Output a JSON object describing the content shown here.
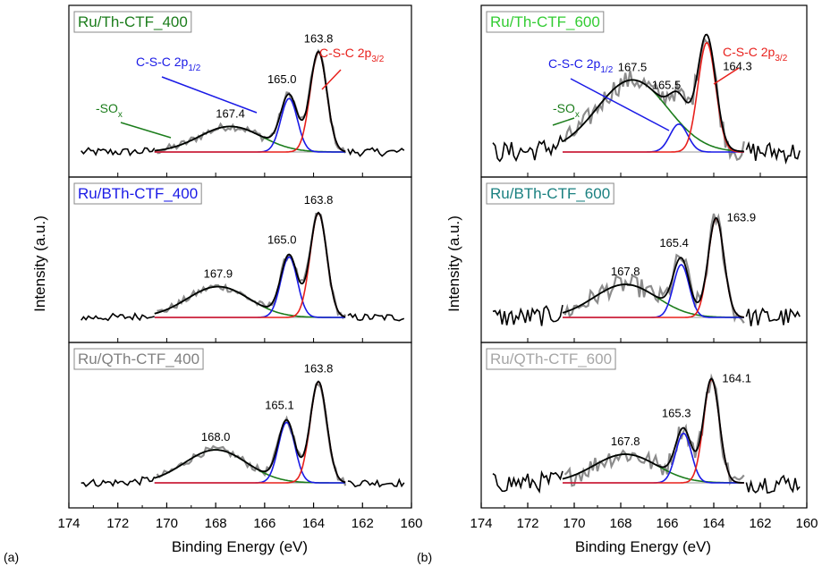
{
  "figure": {
    "panel_labels": [
      "(a)",
      "(b)"
    ],
    "xlabel": "Binding Energy (eV)",
    "ylabel": "Intensity (a.u.)",
    "xticks": [
      174,
      172,
      170,
      168,
      166,
      164,
      162,
      160
    ]
  },
  "colors": {
    "exp": "#8c8c8c",
    "envelope": "#000000",
    "p32": "#e8201c",
    "p12": "#1a1ae6",
    "sox": "#1c7d1c",
    "baseline": "#777777"
  },
  "chart_data": [
    {
      "type": "line",
      "title": "Ru/Th-CTF_400",
      "title_color": "#1c7d1c",
      "xlim": [
        174,
        160
      ],
      "peaks": {
        "p32": 163.8,
        "p12": 165.0,
        "sox": 167.4
      },
      "heights": {
        "p32": 0.86,
        "p12": 0.46,
        "sox": 0.22
      },
      "fwhm": {
        "p32": 0.8,
        "p12": 0.8,
        "sox": 3.0
      },
      "peak_labels": [
        "163.8",
        "165.0",
        "167.4"
      ],
      "annotations": {
        "p32": "C-S-C 2p",
        "p32_sub": "3/2",
        "p12": "C-S-C 2p",
        "p12_sub": "1/2",
        "sox": "-SO",
        "sox_sub": "x"
      }
    },
    {
      "type": "line",
      "title": "Ru/BTh-CTF_400",
      "title_color": "#1a1ae6",
      "xlim": [
        174,
        160
      ],
      "peaks": {
        "p32": 163.8,
        "p12": 165.0,
        "sox": 167.9
      },
      "heights": {
        "p32": 0.95,
        "p12": 0.55,
        "sox": 0.28
      },
      "fwhm": {
        "p32": 0.8,
        "p12": 0.8,
        "sox": 3.0
      },
      "peak_labels": [
        "163.8",
        "165.0",
        "167.9"
      ]
    },
    {
      "type": "line",
      "title": "Ru/QTh-CTF_400",
      "title_color": "#808080",
      "xlim": [
        174,
        160
      ],
      "peaks": {
        "p32": 163.8,
        "p12": 165.1,
        "sox": 168.0
      },
      "heights": {
        "p32": 0.92,
        "p12": 0.55,
        "sox": 0.3
      },
      "fwhm": {
        "p32": 0.8,
        "p12": 0.8,
        "sox": 3.0
      },
      "peak_labels": [
        "163.8",
        "165.1",
        "168.0"
      ]
    },
    {
      "type": "line",
      "title": "Ru/Th-CTF_600",
      "title_color": "#33cc33",
      "xlim": [
        174,
        160
      ],
      "peaks": {
        "p32": 164.3,
        "p12": 165.5,
        "sox": 167.5
      },
      "heights": {
        "p32": 0.94,
        "p12": 0.24,
        "sox": 0.62
      },
      "fwhm": {
        "p32": 0.9,
        "p12": 0.9,
        "sox": 3.6
      },
      "peak_labels": [
        "164.3",
        "165.5",
        "167.5"
      ],
      "annotations": {
        "p32": "C-S-C 2p",
        "p32_sub": "3/2",
        "p12": "C-S-C 2p",
        "p12_sub": "1/2",
        "sox": "-SO",
        "sox_sub": "x"
      }
    },
    {
      "type": "line",
      "title": "Ru/BTh-CTF_600",
      "title_color": "#1a8080",
      "xlim": [
        174,
        160
      ],
      "peaks": {
        "p32": 163.9,
        "p12": 165.4,
        "sox": 167.8
      },
      "heights": {
        "p32": 0.9,
        "p12": 0.48,
        "sox": 0.3
      },
      "fwhm": {
        "p32": 0.8,
        "p12": 0.8,
        "sox": 3.2
      },
      "peak_labels": [
        "163.9",
        "165.4",
        "167.8"
      ]
    },
    {
      "type": "line",
      "title": "Ru/QTh-CTF_600",
      "title_color": "#a6a6a6",
      "xlim": [
        174,
        160
      ],
      "peaks": {
        "p32": 164.1,
        "p12": 165.3,
        "sox": 167.8
      },
      "heights": {
        "p32": 0.94,
        "p12": 0.45,
        "sox": 0.26
      },
      "fwhm": {
        "p32": 0.8,
        "p12": 0.8,
        "sox": 3.2
      },
      "peak_labels": [
        "164.1",
        "165.3",
        "167.8"
      ]
    }
  ]
}
